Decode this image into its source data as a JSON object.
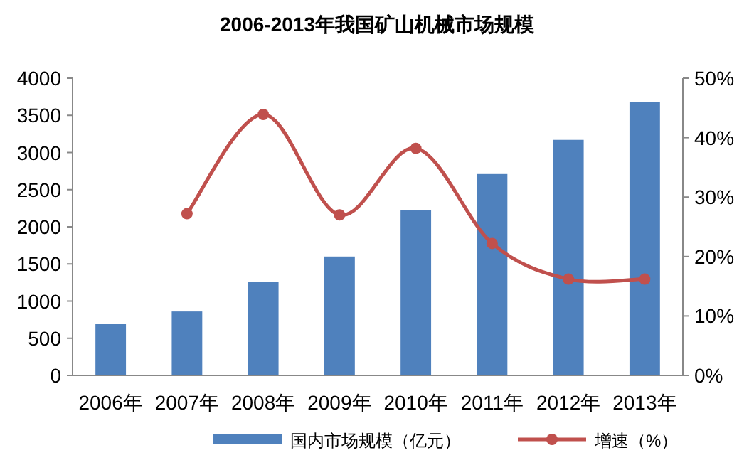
{
  "chart_data": {
    "type": "bar",
    "title": "2006-2013年我国矿山机械市场规模",
    "categories": [
      "2006年",
      "2007年",
      "2008年",
      "2009年",
      "2010年",
      "2011年",
      "2012年",
      "2013年"
    ],
    "series": [
      {
        "name": "国内市场规模（亿元）",
        "color": "#4f81bd",
        "values": [
          690,
          860,
          1260,
          1600,
          2220,
          2710,
          3170,
          3680
        ]
      },
      {
        "name": "增速（%）",
        "type": "line",
        "axis": "y2",
        "color": "#c0504d",
        "marker": "circle",
        "values": [
          null,
          27.2,
          43.9,
          27.0,
          38.2,
          22.2,
          16.2,
          16.2
        ]
      }
    ],
    "ylim": [
      0,
      4000
    ],
    "yticks": [
      0,
      500,
      1000,
      1500,
      2000,
      2500,
      3000,
      3500,
      4000
    ],
    "y2lim": [
      0,
      50
    ],
    "y2ticks": [
      {
        "value": 0,
        "label": "0%"
      },
      {
        "value": 10,
        "label": "10%"
      },
      {
        "value": 20,
        "label": "20%"
      },
      {
        "value": 30,
        "label": "30%"
      },
      {
        "value": 40,
        "label": "40%"
      },
      {
        "value": 50,
        "label": "50%"
      }
    ],
    "grid": false,
    "legend": "bottom"
  }
}
